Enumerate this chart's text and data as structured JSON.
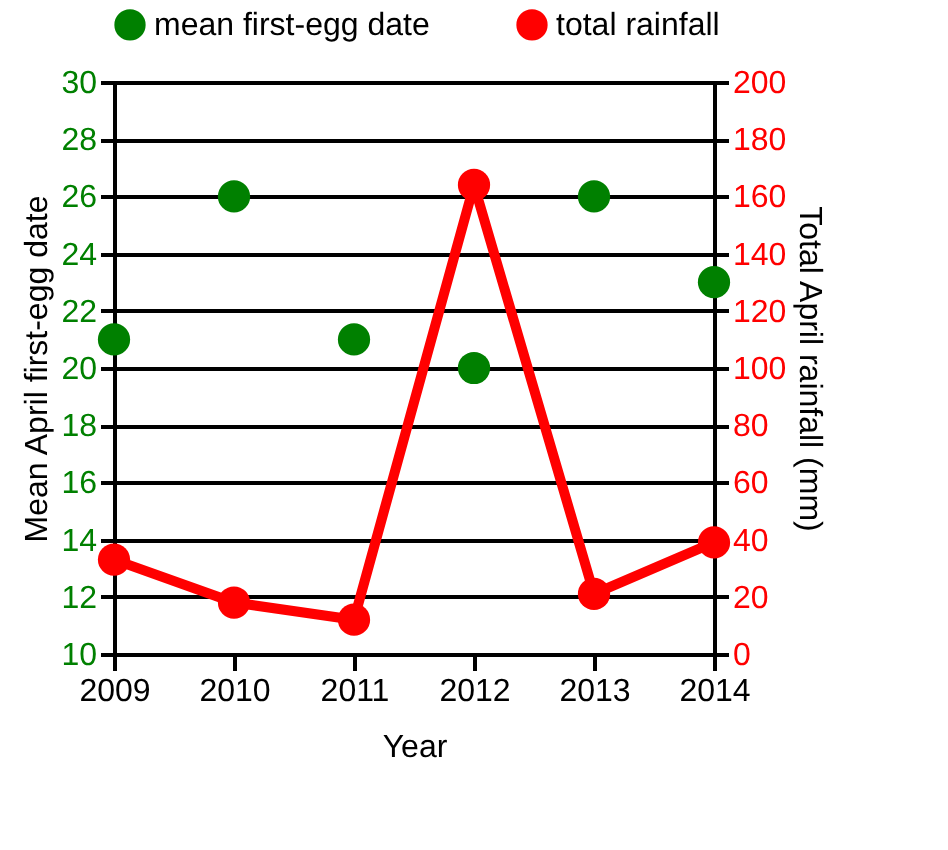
{
  "chart_data": {
    "type": "scatter",
    "x": [
      2009,
      2010,
      2011,
      2012,
      2013,
      2014
    ],
    "xlabel": "Year",
    "ylabel": "Mean April first-egg date",
    "y2label": "Total April rainfall (mm)",
    "xlim": [
      2009,
      2014
    ],
    "xticks": [
      2009,
      2010,
      2011,
      2012,
      2013,
      2014
    ],
    "ylim": [
      10,
      30
    ],
    "yticks": [
      10,
      12,
      14,
      16,
      18,
      20,
      22,
      24,
      26,
      28,
      30
    ],
    "y2lim": [
      0,
      200
    ],
    "y2ticks": [
      0,
      20,
      40,
      60,
      80,
      100,
      120,
      140,
      160,
      180,
      200
    ],
    "series": [
      {
        "name": "mean first-egg date",
        "color": "#008000",
        "values": [
          21,
          26,
          21,
          20,
          26,
          23
        ]
      },
      {
        "name": "total rainfall",
        "type": "line",
        "axis": "y2",
        "color": "#ff0000",
        "values": [
          33,
          18,
          12,
          164,
          21,
          39
        ]
      }
    ],
    "grid": "y",
    "legend": "top",
    "marker": "circle",
    "line_style": "solid"
  }
}
